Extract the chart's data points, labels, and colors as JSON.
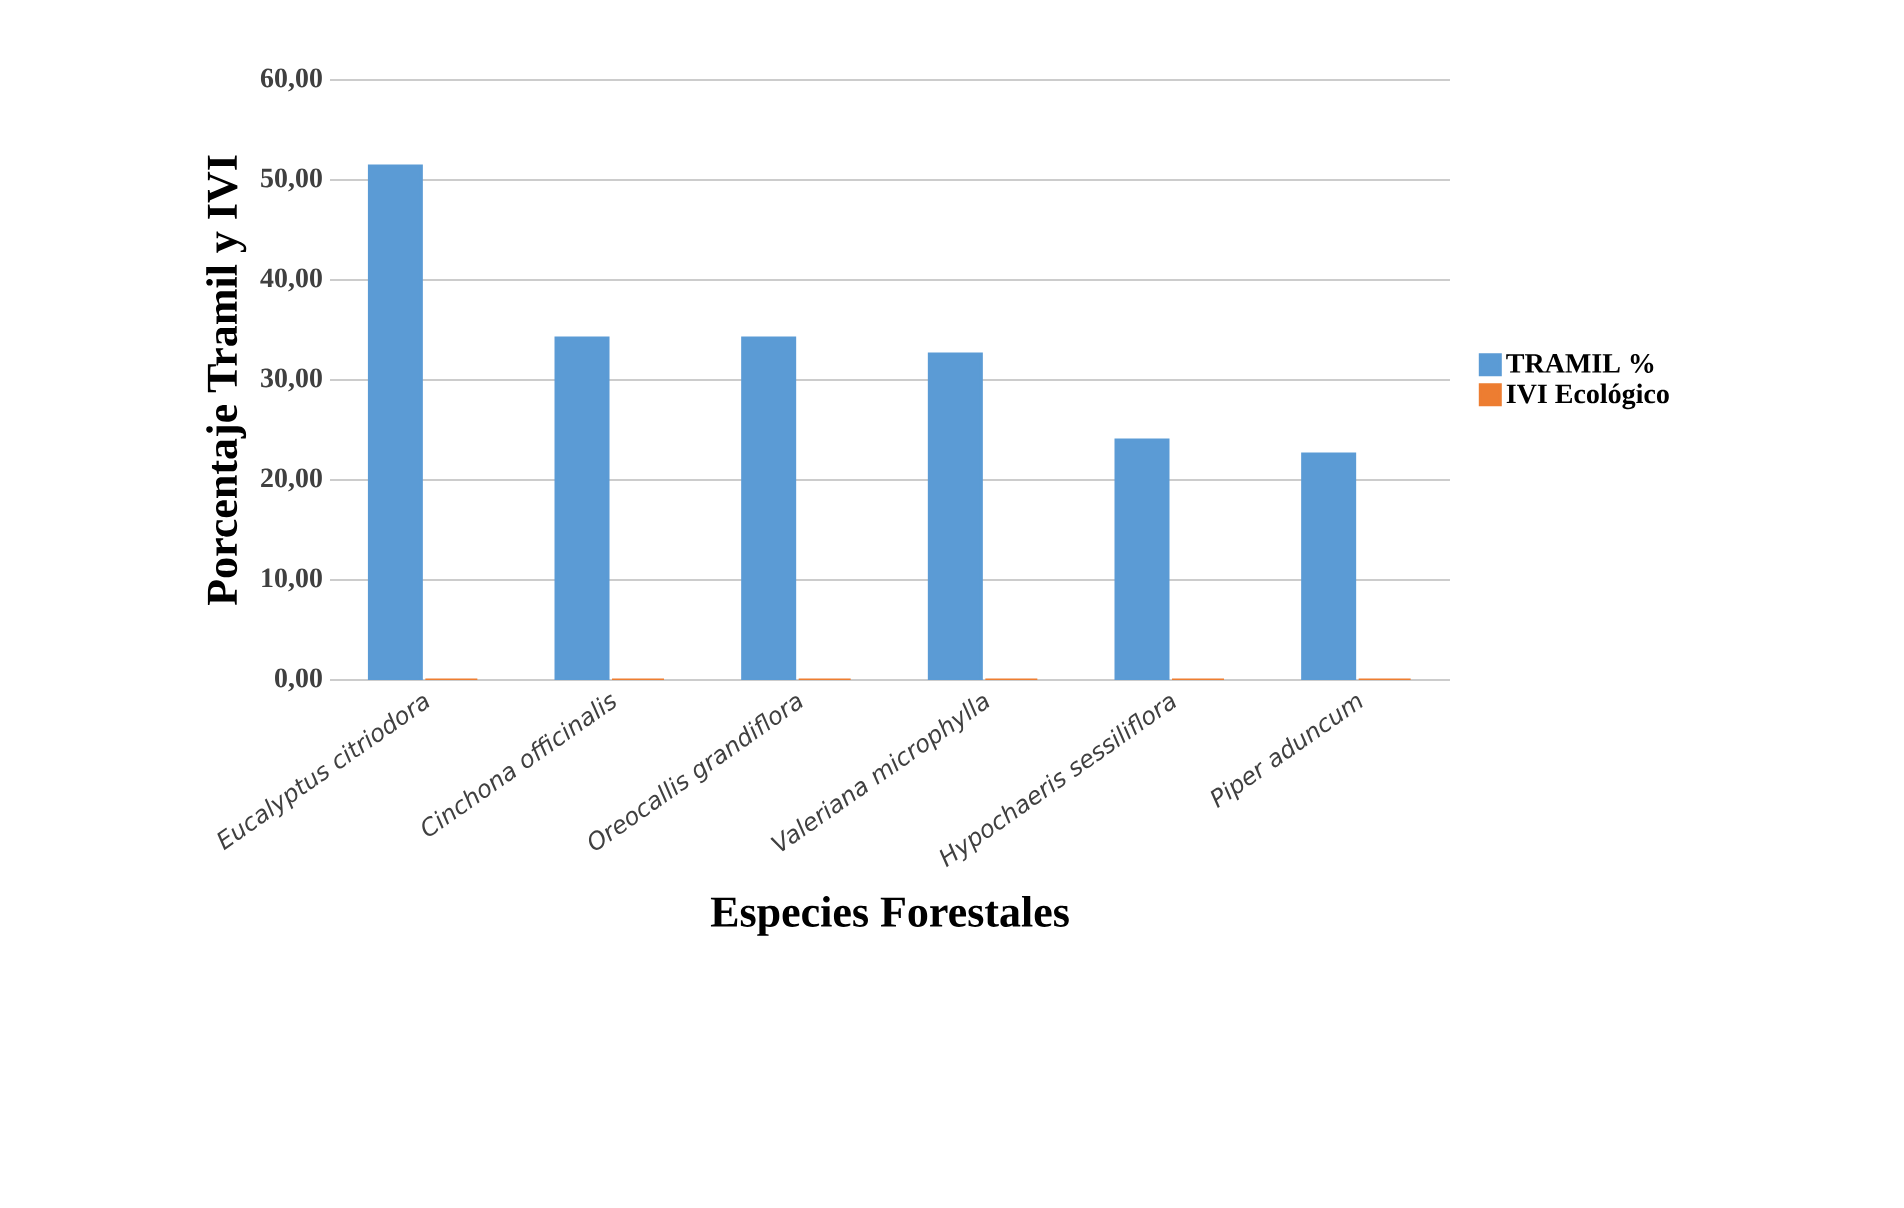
{
  "chart_data": {
    "type": "bar",
    "xlabel": "Especies Forestales",
    "ylabel": "Porcentaje Tramil y IVI",
    "categories": [
      "Eucalyptus citriodora",
      "Cinchona officinalis",
      "Oreocallis grandiflora",
      "Valeriana microphylla",
      "Hypochaeris sessiliflora",
      "Piper aduncum"
    ],
    "series": [
      {
        "name": "TRAMIL %",
        "color": "#5b9bd5",
        "values": [
          51.4,
          34.2,
          34.2,
          32.6,
          24.0,
          22.6
        ]
      },
      {
        "name": "IVI Ecológico",
        "color": "#ed7d31",
        "values": [
          0,
          0,
          0,
          0,
          0,
          0
        ]
      }
    ],
    "ylim": [
      0,
      60
    ],
    "yticks": [
      {
        "value": 0,
        "label": "0,00"
      },
      {
        "value": 10,
        "label": "10,00"
      },
      {
        "value": 20,
        "label": "20,00"
      },
      {
        "value": 30,
        "label": "30,00"
      },
      {
        "value": 40,
        "label": "40,00"
      },
      {
        "value": 50,
        "label": "50,00"
      },
      {
        "value": 60,
        "label": "60,00"
      }
    ],
    "grid": "y",
    "legend": "right"
  }
}
